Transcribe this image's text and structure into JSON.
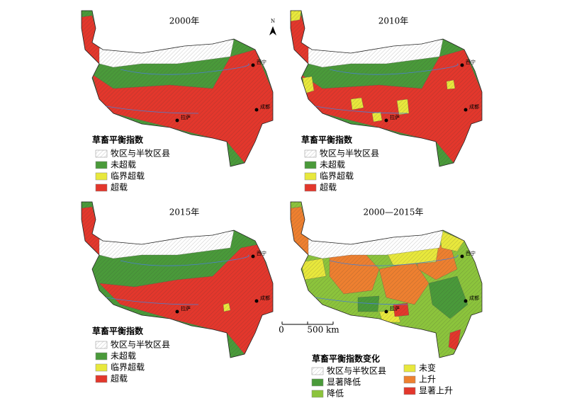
{
  "panels": [
    {
      "title": "2000年",
      "legend_title": "草畜平衡指数",
      "legend": [
        "牧区与半牧区县",
        "未超载",
        "临界超载",
        "超载"
      ]
    },
    {
      "title": "2010年",
      "legend_title": "草畜平衡指数",
      "legend": [
        "牧区与半牧区县",
        "未超载",
        "临界超载",
        "超载"
      ]
    },
    {
      "title": "2015年",
      "legend_title": "草畜平衡指数",
      "legend": [
        "牧区与半牧区县",
        "未超载",
        "临界超载",
        "超载"
      ]
    },
    {
      "title": "2000—2015年",
      "legend_title": "草畜平衡指数变化",
      "legend": [
        "牧区与半牧区县",
        "显著降低",
        "降低",
        "未变",
        "上升",
        "显著上升"
      ]
    }
  ],
  "north": "N",
  "scale": {
    "start": "0",
    "end": "500 km"
  },
  "cities": [
    "拉萨",
    "西宁",
    "成都"
  ]
}
